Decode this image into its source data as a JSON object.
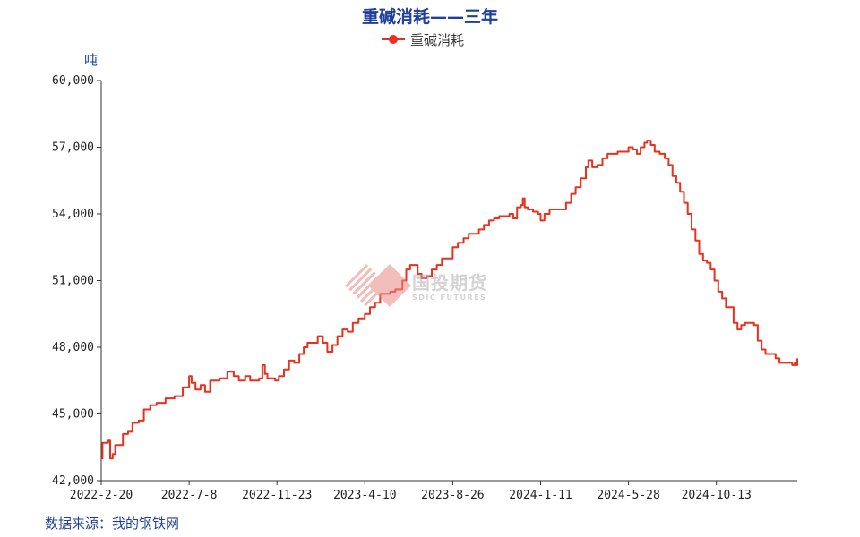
{
  "chart_data": {
    "type": "line",
    "title": "重碱消耗——三年",
    "ylabel": "吨",
    "xlabel": "",
    "ylim": [
      42000,
      60000
    ],
    "yticks": [
      42000,
      45000,
      48000,
      51000,
      54000,
      57000,
      60000
    ],
    "ytick_labels": [
      "42,000",
      "45,000",
      "48,000",
      "51,000",
      "54,000",
      "57,000",
      "60,000"
    ],
    "x_start": "2022-2-20",
    "x_end": "2025-2-17",
    "xtick_labels": [
      "2022-2-20",
      "2022-7-8",
      "2022-11-23",
      "2023-4-10",
      "2023-8-26",
      "2024-1-11",
      "2024-5-28",
      "2024-10-13"
    ],
    "legend": "top-center",
    "grid": false,
    "series": [
      {
        "name": "重碱消耗",
        "color": "#e8311e",
        "points": [
          [
            "2022-2-20",
            43000
          ],
          [
            "2022-2-22",
            43700
          ],
          [
            "2022-3-3",
            43800
          ],
          [
            "2022-3-6",
            43000
          ],
          [
            "2022-3-10",
            43200
          ],
          [
            "2022-3-14",
            43600
          ],
          [
            "2022-3-20",
            43600
          ],
          [
            "2022-3-26",
            44100
          ],
          [
            "2022-4-3",
            44200
          ],
          [
            "2022-4-10",
            44600
          ],
          [
            "2022-4-20",
            44700
          ],
          [
            "2022-4-28",
            45200
          ],
          [
            "2022-5-8",
            45400
          ],
          [
            "2022-5-18",
            45500
          ],
          [
            "2022-6-1",
            45700
          ],
          [
            "2022-6-15",
            45800
          ],
          [
            "2022-6-28",
            46200
          ],
          [
            "2022-7-4",
            46200
          ],
          [
            "2022-7-8",
            46700
          ],
          [
            "2022-7-12",
            46400
          ],
          [
            "2022-7-18",
            46100
          ],
          [
            "2022-7-26",
            46300
          ],
          [
            "2022-8-2",
            46000
          ],
          [
            "2022-8-10",
            46500
          ],
          [
            "2022-8-25",
            46600
          ],
          [
            "2022-9-6",
            46900
          ],
          [
            "2022-9-16",
            46700
          ],
          [
            "2022-9-24",
            46500
          ],
          [
            "2022-10-4",
            46700
          ],
          [
            "2022-10-12",
            46500
          ],
          [
            "2022-10-26",
            46600
          ],
          [
            "2022-10-31",
            47200
          ],
          [
            "2022-11-4",
            46800
          ],
          [
            "2022-11-8",
            46600
          ],
          [
            "2022-11-20",
            46500
          ],
          [
            "2022-11-26",
            46700
          ],
          [
            "2022-12-4",
            47000
          ],
          [
            "2022-12-12",
            47400
          ],
          [
            "2022-12-20",
            47300
          ],
          [
            "2022-12-28",
            47700
          ],
          [
            "2023-1-4",
            48000
          ],
          [
            "2023-1-10",
            48200
          ],
          [
            "2023-1-20",
            48200
          ],
          [
            "2023-1-26",
            48500
          ],
          [
            "2023-2-3",
            48200
          ],
          [
            "2023-2-10",
            47800
          ],
          [
            "2023-2-18",
            48100
          ],
          [
            "2023-2-26",
            48500
          ],
          [
            "2023-3-6",
            48800
          ],
          [
            "2023-3-14",
            48700
          ],
          [
            "2023-3-22",
            49100
          ],
          [
            "2023-3-31",
            49300
          ],
          [
            "2023-4-10",
            49500
          ],
          [
            "2023-4-18",
            49800
          ],
          [
            "2023-4-26",
            50000
          ],
          [
            "2023-5-4",
            50400
          ],
          [
            "2023-5-12",
            50400
          ],
          [
            "2023-5-20",
            50500
          ],
          [
            "2023-5-28",
            50600
          ],
          [
            "2023-6-3",
            50600
          ],
          [
            "2023-6-8",
            51000
          ],
          [
            "2023-6-14",
            51500
          ],
          [
            "2023-6-20",
            51700
          ],
          [
            "2023-6-26",
            51700
          ],
          [
            "2023-7-2",
            51300
          ],
          [
            "2023-7-8",
            51100
          ],
          [
            "2023-7-16",
            51200
          ],
          [
            "2023-7-24",
            51500
          ],
          [
            "2023-8-1",
            51700
          ],
          [
            "2023-8-9",
            52000
          ],
          [
            "2023-8-17",
            52000
          ],
          [
            "2023-8-26",
            52500
          ],
          [
            "2023-9-3",
            52700
          ],
          [
            "2023-9-12",
            52900
          ],
          [
            "2023-9-20",
            53100
          ],
          [
            "2023-9-28",
            53100
          ],
          [
            "2023-10-6",
            53300
          ],
          [
            "2023-10-14",
            53500
          ],
          [
            "2023-10-22",
            53700
          ],
          [
            "2023-10-30",
            53800
          ],
          [
            "2023-11-7",
            53900
          ],
          [
            "2023-11-15",
            53900
          ],
          [
            "2023-11-23",
            54000
          ],
          [
            "2023-11-29",
            53800
          ],
          [
            "2023-12-5",
            54300
          ],
          [
            "2023-12-11",
            54400
          ],
          [
            "2023-12-14",
            54700
          ],
          [
            "2023-12-17",
            54300
          ],
          [
            "2023-12-22",
            54200
          ],
          [
            "2023-12-30",
            54100
          ],
          [
            "2024-1-7",
            54000
          ],
          [
            "2024-1-11",
            53700
          ],
          [
            "2024-1-17",
            54000
          ],
          [
            "2024-1-25",
            54200
          ],
          [
            "2024-2-4",
            54200
          ],
          [
            "2024-2-14",
            54200
          ],
          [
            "2024-2-20",
            54500
          ],
          [
            "2024-2-28",
            54900
          ],
          [
            "2024-3-6",
            55200
          ],
          [
            "2024-3-14",
            55600
          ],
          [
            "2024-3-22",
            56100
          ],
          [
            "2024-3-26",
            56400
          ],
          [
            "2024-4-1",
            56100
          ],
          [
            "2024-4-9",
            56200
          ],
          [
            "2024-4-17",
            56500
          ],
          [
            "2024-4-25",
            56700
          ],
          [
            "2024-5-3",
            56700
          ],
          [
            "2024-5-11",
            56800
          ],
          [
            "2024-5-19",
            56800
          ],
          [
            "2024-5-28",
            57000
          ],
          [
            "2024-6-4",
            56900
          ],
          [
            "2024-6-10",
            56700
          ],
          [
            "2024-6-16",
            57000
          ],
          [
            "2024-6-22",
            57200
          ],
          [
            "2024-6-26",
            57300
          ],
          [
            "2024-7-2",
            57100
          ],
          [
            "2024-7-8",
            56800
          ],
          [
            "2024-7-16",
            56700
          ],
          [
            "2024-7-24",
            56500
          ],
          [
            "2024-7-30",
            56200
          ],
          [
            "2024-8-5",
            55700
          ],
          [
            "2024-8-11",
            55400
          ],
          [
            "2024-8-17",
            55000
          ],
          [
            "2024-8-23",
            54500
          ],
          [
            "2024-8-29",
            54000
          ],
          [
            "2024-9-4",
            53300
          ],
          [
            "2024-9-10",
            52800
          ],
          [
            "2024-9-16",
            52200
          ],
          [
            "2024-9-22",
            51900
          ],
          [
            "2024-9-28",
            51800
          ],
          [
            "2024-10-4",
            51500
          ],
          [
            "2024-10-10",
            51000
          ],
          [
            "2024-10-16",
            50500
          ],
          [
            "2024-10-22",
            50200
          ],
          [
            "2024-10-28",
            49800
          ],
          [
            "2024-11-3",
            49800
          ],
          [
            "2024-11-9",
            49100
          ],
          [
            "2024-11-15",
            48800
          ],
          [
            "2024-11-21",
            49000
          ],
          [
            "2024-11-27",
            49100
          ],
          [
            "2024-12-5",
            49100
          ],
          [
            "2024-12-11",
            49000
          ],
          [
            "2024-12-17",
            48300
          ],
          [
            "2024-12-23",
            47900
          ],
          [
            "2024-12-29",
            47700
          ],
          [
            "2025-1-8",
            47700
          ],
          [
            "2025-1-14",
            47500
          ],
          [
            "2025-1-20",
            47300
          ],
          [
            "2025-1-28",
            47300
          ],
          [
            "2025-2-3",
            47300
          ],
          [
            "2025-2-9",
            47200
          ],
          [
            "2025-2-13",
            47300
          ],
          [
            "2025-2-15",
            47200
          ],
          [
            "2025-2-17",
            47500
          ]
        ]
      }
    ]
  },
  "y_unit": "吨",
  "source": "数据来源：我的钢铁网",
  "watermark": {
    "cn": "国投期货",
    "en": "SDIC FUTURES"
  }
}
